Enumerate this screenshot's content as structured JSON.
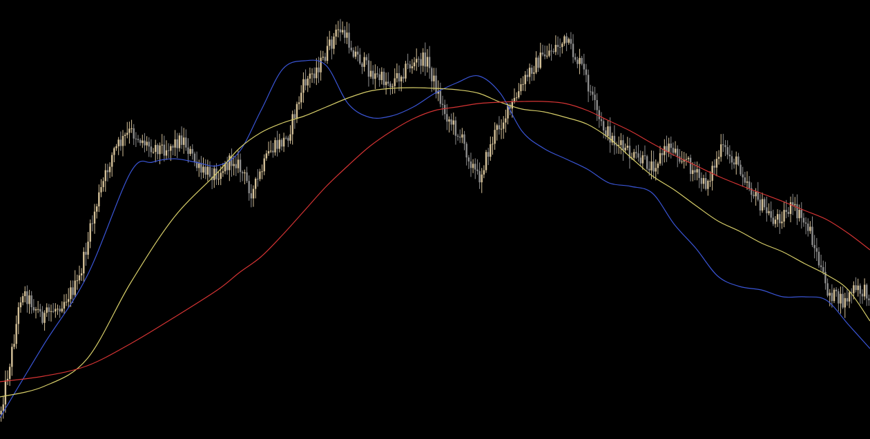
{
  "colors": {
    "background": "#000000",
    "candle_up": "#d7c39a",
    "candle_down": "#8e8e8e",
    "ma_fast": "#3a55d6",
    "ma_mid": "#d8cf6a",
    "ma_slow": "#d63434"
  },
  "chart_data": {
    "type": "line",
    "grid": false,
    "legend": "none",
    "xlim": [
      0,
      400
    ],
    "ylim": [
      0,
      636
    ],
    "y_inverted": true,
    "price_anchors": {
      "x": [
        0,
        6,
        10,
        20,
        28,
        36,
        44,
        52,
        60,
        68,
        76,
        84,
        92,
        100,
        108,
        116,
        124,
        132,
        140,
        148,
        156,
        164,
        172,
        180,
        188,
        196,
        204,
        212,
        220,
        228,
        236,
        244,
        252,
        260,
        268,
        276,
        284,
        292,
        300,
        308,
        316,
        324,
        332,
        340,
        348,
        356,
        364,
        372,
        380,
        388,
        392,
        400
      ],
      "y": [
        600,
        500,
        420,
        460,
        440,
        410,
        300,
        220,
        190,
        210,
        215,
        200,
        250,
        250,
        230,
        280,
        220,
        200,
        120,
        90,
        40,
        80,
        110,
        120,
        95,
        85,
        160,
        200,
        260,
        190,
        150,
        100,
        75,
        60,
        100,
        180,
        210,
        230,
        240,
        210,
        235,
        270,
        215,
        240,
        290,
        320,
        300,
        330,
        420,
        440,
        420,
        425
      ]
    },
    "series": [
      {
        "key": "ma_fast",
        "x": [
          0,
          20,
          40,
          60,
          70,
          80,
          90,
          100,
          110,
          120,
          130,
          140,
          150,
          160,
          170,
          180,
          190,
          200,
          210,
          220,
          230,
          240,
          250,
          260,
          270,
          280,
          290,
          300,
          310,
          320,
          330,
          340,
          350,
          360,
          370,
          380,
          390,
          400
        ],
        "y": [
          605,
          500,
          400,
          250,
          235,
          230,
          235,
          240,
          220,
          160,
          100,
          88,
          95,
          150,
          170,
          168,
          155,
          135,
          120,
          110,
          135,
          190,
          215,
          230,
          245,
          265,
          270,
          280,
          325,
          360,
          400,
          415,
          420,
          430,
          430,
          435,
          470,
          505
        ]
      },
      {
        "key": "ma_mid",
        "x": [
          0,
          20,
          40,
          60,
          80,
          100,
          110,
          120,
          130,
          140,
          150,
          160,
          170,
          180,
          190,
          200,
          210,
          220,
          230,
          240,
          250,
          260,
          270,
          280,
          290,
          300,
          310,
          320,
          330,
          340,
          350,
          360,
          370,
          380,
          390,
          400
        ],
        "y": [
          575,
          560,
          520,
          410,
          315,
          250,
          215,
          192,
          178,
          168,
          155,
          142,
          132,
          128,
          127,
          128,
          130,
          135,
          148,
          158,
          162,
          170,
          180,
          200,
          228,
          255,
          275,
          298,
          320,
          335,
          352,
          365,
          382,
          398,
          420,
          465
        ]
      },
      {
        "key": "ma_slow",
        "x": [
          0,
          20,
          40,
          60,
          80,
          100,
          110,
          120,
          130,
          140,
          150,
          160,
          170,
          180,
          190,
          200,
          210,
          220,
          230,
          240,
          250,
          260,
          270,
          280,
          290,
          300,
          310,
          320,
          330,
          340,
          350,
          360,
          370,
          380,
          390,
          400
        ],
        "y": [
          553,
          545,
          530,
          498,
          460,
          420,
          395,
          372,
          340,
          305,
          270,
          240,
          212,
          190,
          172,
          160,
          155,
          150,
          148,
          147,
          147,
          150,
          160,
          175,
          190,
          208,
          225,
          240,
          255,
          268,
          280,
          292,
          305,
          318,
          338,
          362
        ]
      }
    ]
  }
}
